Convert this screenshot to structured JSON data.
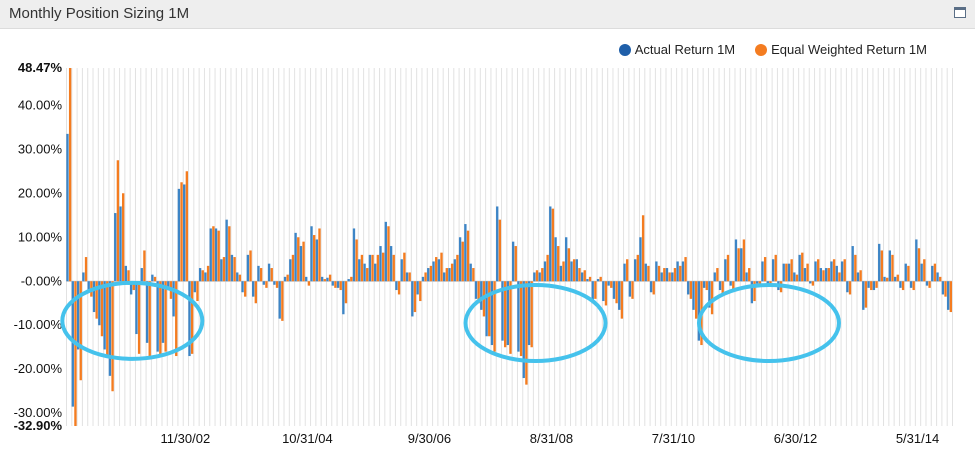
{
  "window": {
    "title": "Monthly Position Sizing 1M"
  },
  "colors": {
    "actual": "#3d85c6",
    "equal": "#f47c20",
    "circle": "#45c2ec",
    "grid": "#e2e2e2"
  },
  "chart_data": {
    "type": "bar",
    "title": "Monthly Position Sizing 1M",
    "xlabel": "",
    "ylabel": "",
    "ylim": [
      -32.9,
      48.47
    ],
    "grid": true,
    "legend_position": "top-right",
    "y_ticks": [
      {
        "value": 48.47,
        "label": "48.47%",
        "bold": true
      },
      {
        "value": 40,
        "label": "40.00%"
      },
      {
        "value": 30,
        "label": "30.00%"
      },
      {
        "value": 20,
        "label": "20.00%"
      },
      {
        "value": 10,
        "label": "10.00%"
      },
      {
        "value": 0,
        "label": "-0.00%"
      },
      {
        "value": -10,
        "label": "-10.00%"
      },
      {
        "value": -20,
        "label": "-20.00%"
      },
      {
        "value": -30,
        "label": "-30.00%"
      },
      {
        "value": -32.9,
        "label": "-32.90%",
        "bold": true
      }
    ],
    "x_ticks": [
      {
        "label": "11/30/02",
        "index": 22
      },
      {
        "label": "10/31/04",
        "index": 45
      },
      {
        "label": "9/30/06",
        "index": 68
      },
      {
        "label": "8/31/08",
        "index": 91
      },
      {
        "label": "7/31/10",
        "index": 114
      },
      {
        "label": "6/30/12",
        "index": 137
      },
      {
        "label": "5/31/14",
        "index": 160
      }
    ],
    "series": [
      {
        "name": "Actual Return 1M",
        "values": [
          33.5,
          -28.5,
          -15.5,
          2.0,
          -2.0,
          -7.0,
          -10.0,
          -15.5,
          -21.5,
          15.5,
          17.0,
          3.5,
          -3.0,
          -12.0,
          3.0,
          -14.0,
          1.5,
          -16.0,
          -14.0,
          -2.0,
          -8.0,
          21.0,
          22.0,
          -17.0,
          -2.5,
          3.0,
          2.0,
          12.0,
          12.0,
          5.0,
          14.0,
          6.0,
          2.0,
          -2.5,
          6.0,
          -3.5,
          3.5,
          -0.8,
          4.0,
          -0.8,
          -8.5,
          1.0,
          5.0,
          11.0,
          8.0,
          1.0,
          12.5,
          9.5,
          1.0,
          0.8,
          -1.0,
          -1.5,
          -7.5,
          0.5,
          12.0,
          5.0,
          4.0,
          6.0,
          4.0,
          8.0,
          13.5,
          8.0,
          -2.0,
          5.0,
          2.0,
          -8.0,
          -3.0,
          1.0,
          3.0,
          4.5,
          5.0,
          2.0,
          3.0,
          5.0,
          10.0,
          13.0,
          4.0,
          -4.0,
          -6.5,
          -12.5,
          -14.5,
          17.0,
          -13.5,
          -14.5,
          9.0,
          -16.0,
          -22.0,
          -14.5,
          2.0,
          2.0,
          4.5,
          17.0,
          10.0,
          3.5,
          10.0,
          4.5,
          5.0,
          2.0,
          0.5,
          -5.0,
          0.5,
          -4.5,
          -1.0,
          -4.0,
          -6.5,
          4.0,
          -3.5,
          5.0,
          10.0,
          4.0,
          -2.5,
          4.5,
          2.0,
          3.0,
          2.0,
          4.5,
          4.5,
          -3.0,
          -6.5,
          -13.5,
          -1.5,
          -6.0,
          2.0,
          -2.0,
          5.0,
          -1.0,
          9.5,
          7.5,
          2.0,
          -5.0,
          -0.5,
          4.5,
          -1.0,
          5.0,
          -2.0,
          4.0,
          4.0,
          2.0,
          6.0,
          3.0,
          -0.5,
          4.5,
          3.0,
          3.0,
          4.5,
          3.5,
          4.5,
          -2.5,
          8.0,
          2.0,
          -6.5,
          -1.5,
          -2.0,
          8.5,
          1.0,
          7.0,
          1.0,
          -1.5,
          4.0,
          -1.5,
          9.5,
          4.0,
          -1.0,
          3.5,
          2.0,
          -3.0,
          -6.5
        ],
        "color": "#3d85c6"
      },
      {
        "name": "Equal Weighted Return 1M",
        "values": [
          48.47,
          -32.9,
          -22.5,
          5.5,
          -3.5,
          -8.5,
          -12.5,
          -17.0,
          -25.0,
          27.5,
          20.0,
          2.5,
          -2.0,
          -16.5,
          7.0,
          -17.0,
          1.0,
          -17.0,
          -16.0,
          -4.0,
          -17.0,
          22.5,
          25.0,
          -16.5,
          -4.5,
          2.5,
          3.5,
          12.5,
          11.5,
          5.5,
          12.5,
          5.5,
          1.5,
          -3.5,
          7.0,
          -5.0,
          3.0,
          -1.5,
          3.0,
          -1.5,
          -9.0,
          1.5,
          6.0,
          10.0,
          9.0,
          -1.0,
          10.5,
          12.0,
          0.5,
          1.5,
          -1.5,
          -2.0,
          -5.0,
          1.0,
          9.5,
          6.0,
          3.0,
          6.0,
          6.0,
          6.5,
          12.5,
          6.0,
          -3.0,
          6.5,
          2.0,
          -7.0,
          -4.5,
          2.0,
          3.5,
          5.5,
          6.5,
          3.0,
          4.0,
          6.0,
          9.0,
          11.5,
          3.0,
          -5.0,
          -8.0,
          -12.5,
          -16.0,
          14.0,
          -15.0,
          -16.5,
          8.0,
          -17.0,
          -23.5,
          -15.0,
          2.5,
          3.0,
          6.0,
          16.5,
          8.0,
          4.5,
          7.5,
          5.0,
          3.0,
          2.5,
          1.0,
          -4.0,
          1.0,
          -5.5,
          -1.5,
          -5.0,
          -8.5,
          5.0,
          -4.0,
          6.0,
          15.0,
          3.5,
          -3.0,
          3.5,
          3.0,
          2.0,
          3.0,
          3.5,
          5.5,
          -4.0,
          -8.5,
          -14.5,
          -2.0,
          -7.5,
          3.0,
          -3.0,
          6.0,
          -2.0,
          7.5,
          9.5,
          3.0,
          -4.5,
          -1.0,
          5.5,
          -0.8,
          6.0,
          -2.5,
          4.0,
          5.0,
          1.5,
          6.5,
          4.0,
          -1.0,
          5.0,
          2.5,
          3.0,
          5.0,
          2.0,
          5.0,
          -3.0,
          6.0,
          2.5,
          -6.0,
          -2.0,
          -1.5,
          7.0,
          0.8,
          6.0,
          1.5,
          -2.0,
          3.5,
          -2.0,
          7.5,
          5.0,
          -1.5,
          4.0,
          1.0,
          -3.5,
          -7.0
        ],
        "color": "#f47c20"
      }
    ],
    "annotations": [
      {
        "shape": "ellipse",
        "description": "highlight",
        "center_index": 12,
        "center_value": -9.0
      },
      {
        "shape": "ellipse",
        "description": "highlight",
        "center_index": 88,
        "center_value": -9.5
      },
      {
        "shape": "ellipse",
        "description": "highlight",
        "center_index": 132,
        "center_value": -9.5
      }
    ]
  }
}
